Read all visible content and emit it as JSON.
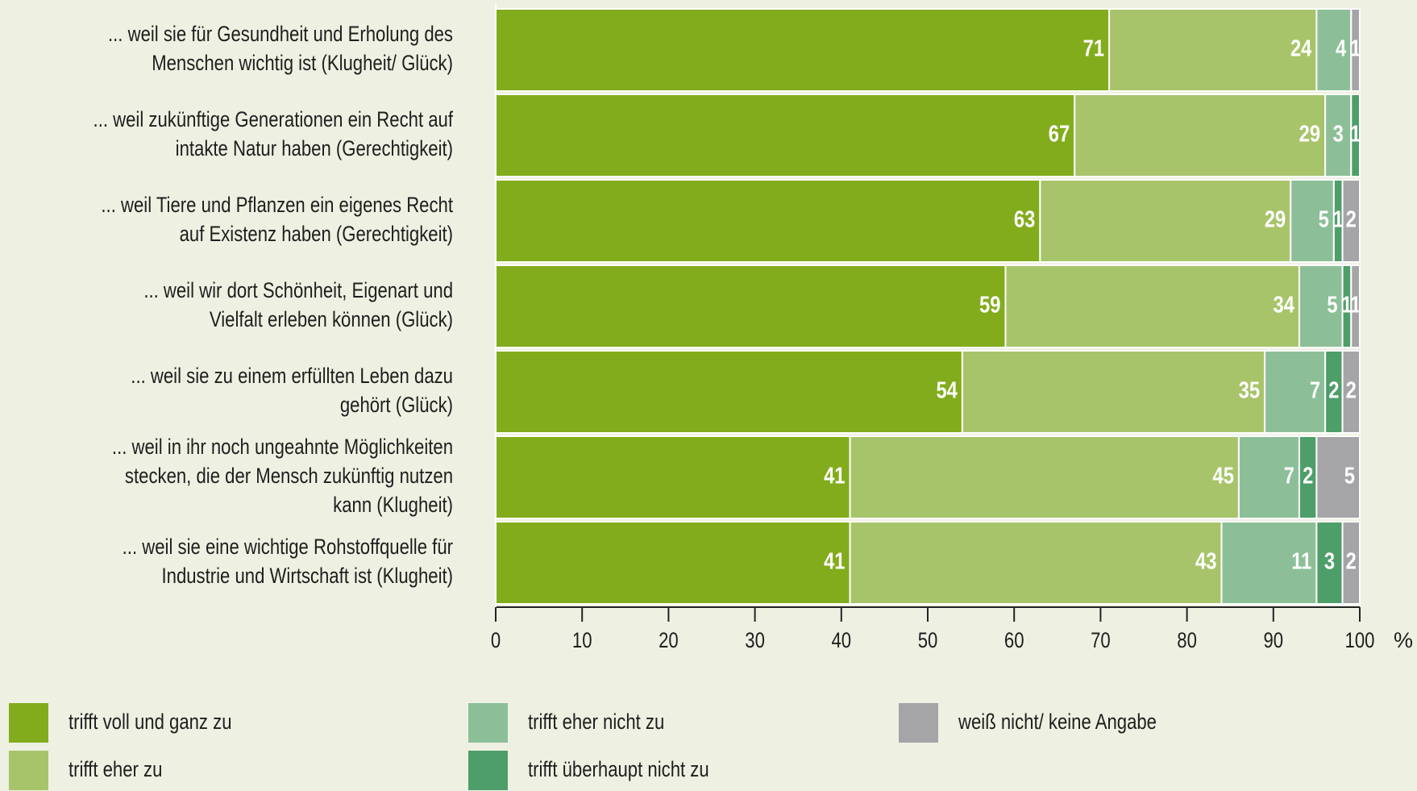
{
  "chart_data": {
    "type": "stacked-barh",
    "categories": [
      [
        "... weil sie für Gesundheit und Erholung des",
        "Menschen wichtig ist (Klugheit/ Glück)"
      ],
      [
        "... weil zukünftige Generationen ein Recht auf",
        "intakte Natur haben (Gerechtigkeit)"
      ],
      [
        "... weil Tiere und Pflanzen ein eigenes Recht",
        "auf Existenz haben (Gerechtigkeit)"
      ],
      [
        "... weil wir dort Schönheit, Eigenart und",
        "Vielfalt erleben können (Glück)"
      ],
      [
        "... weil sie zu einem erfüllten Leben dazu",
        "gehört (Glück)"
      ],
      [
        "... weil in ihr noch ungeahnte Möglichkeiten",
        "stecken, die der Mensch zukünftig nutzen",
        "kann (Klugheit)"
      ],
      [
        "... weil sie eine wichtige Rohstoffquelle für",
        "Industrie und Wirtschaft ist (Klugheit)"
      ]
    ],
    "series": [
      {
        "name": "trifft voll und ganz zu",
        "color": "#82ac1c",
        "values": [
          71,
          67,
          63,
          59,
          54,
          41,
          41
        ]
      },
      {
        "name": "trifft eher zu",
        "color": "#a8c46a",
        "values": [
          24,
          29,
          29,
          34,
          35,
          45,
          43
        ]
      },
      {
        "name": "trifft eher nicht zu",
        "color": "#8cbf98",
        "values": [
          4,
          3,
          5,
          5,
          7,
          7,
          11
        ]
      },
      {
        "name": "trifft überhaupt nicht zu",
        "color": "#4e9e6a",
        "values": [
          0,
          1,
          1,
          1,
          2,
          2,
          3
        ]
      },
      {
        "name": "weiß nicht/ keine Angabe",
        "color": "#a5a5a8",
        "values": [
          1,
          0,
          2,
          1,
          2,
          5,
          2
        ]
      }
    ],
    "xlim": [
      0,
      100
    ],
    "xticks": [
      0,
      10,
      20,
      30,
      40,
      50,
      60,
      70,
      80,
      90,
      100
    ],
    "x_unit": "%"
  }
}
